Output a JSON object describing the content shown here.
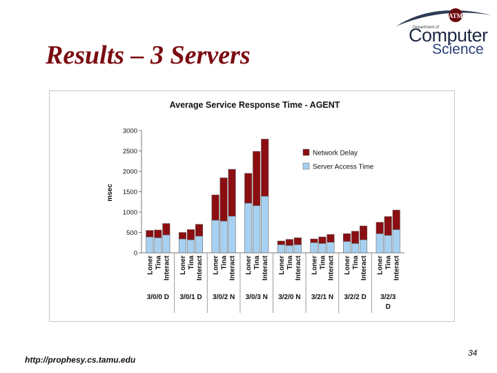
{
  "slide": {
    "title": "Results – 3 Servers",
    "footer_url": "http://prophesy.cs.tamu.edu",
    "page_number": "34"
  },
  "logo": {
    "emblem": "ATM",
    "dept_line": "Department of",
    "word1": "Computer",
    "word2": "Science"
  },
  "chart_data": {
    "type": "bar",
    "stacked": true,
    "title": "Average Service Response Time - AGENT",
    "ylabel": "msec",
    "xlabel": "",
    "ylim": [
      0,
      3000
    ],
    "yticks": [
      0,
      500,
      1000,
      1500,
      2000,
      2500,
      3000
    ],
    "grid": false,
    "legend_position": "top-right",
    "groups": [
      "3/0/0 D",
      "3/0/1 D",
      "3/0/2 N",
      "3/0/3 N",
      "3/2/0 N",
      "3/2/1 N",
      "3/2/2 D",
      "3/2/3 D"
    ],
    "categories_per_group": [
      "Loner",
      "Tina",
      "Interact"
    ],
    "series": [
      {
        "name": "Server Access Time",
        "color": "#a8d0f0",
        "values": [
          390,
          370,
          440,
          340,
          320,
          410,
          800,
          780,
          900,
          1220,
          1160,
          1390,
          200,
          180,
          200,
          250,
          230,
          260,
          280,
          230,
          320,
          470,
          430,
          570
        ]
      },
      {
        "name": "Network Delay",
        "color": "#8b0f12",
        "values": [
          160,
          190,
          280,
          160,
          250,
          290,
          620,
          1060,
          1150,
          730,
          1330,
          1400,
          90,
          150,
          170,
          90,
          160,
          190,
          190,
          300,
          340,
          280,
          460,
          480
        ]
      }
    ]
  }
}
